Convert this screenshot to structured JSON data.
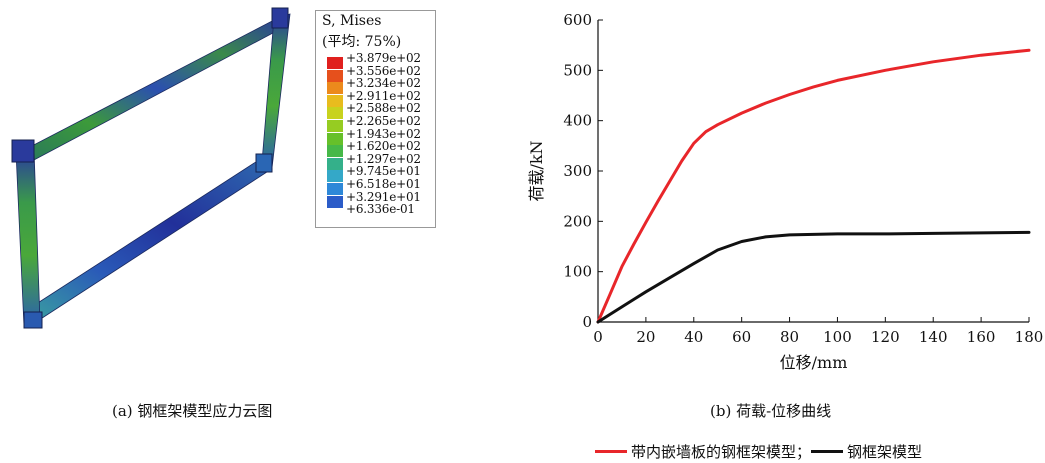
{
  "stress_legend": {
    "title_line1": "S, Mises",
    "title_line2": "(平均: 75%)",
    "entries": [
      {
        "label": "+3.879e+02",
        "color": "#e0201e"
      },
      {
        "label": "+3.556e+02",
        "color": "#e6501c"
      },
      {
        "label": "+3.234e+02",
        "color": "#ec8a1c"
      },
      {
        "label": "+2.911e+02",
        "color": "#e8bc1e"
      },
      {
        "label": "+2.588e+02",
        "color": "#c8d21e"
      },
      {
        "label": "+2.265e+02",
        "color": "#96cc22"
      },
      {
        "label": "+1.943e+02",
        "color": "#66c02a"
      },
      {
        "label": "+1.620e+02",
        "color": "#46b848"
      },
      {
        "label": "+1.297e+02",
        "color": "#34b08a"
      },
      {
        "label": "+9.745e+01",
        "color": "#34a8c8"
      },
      {
        "label": "+6.518e+01",
        "color": "#2e88d8"
      },
      {
        "label": "+3.291e+01",
        "color": "#2b5cc8"
      },
      {
        "label": "+6.336e-01",
        "color": "#1f2fa8"
      }
    ]
  },
  "captions": {
    "a": "(a) 钢框架模型应力云图",
    "b": "(b) 荷载-位移曲线"
  },
  "bottom_legend": {
    "item1": "带内嵌墙板的钢框架模型；",
    "item2": "钢框架模型"
  },
  "chart_data": {
    "type": "line",
    "xlabel": "位移/mm",
    "ylabel": "荷载/kN",
    "xlim": [
      0,
      180
    ],
    "ylim": [
      0,
      600
    ],
    "xticks": [
      0,
      20,
      40,
      60,
      80,
      100,
      120,
      140,
      160,
      180
    ],
    "yticks": [
      0,
      100,
      200,
      300,
      400,
      500,
      600
    ],
    "grid": false,
    "legend_position": "bottom",
    "series": [
      {
        "name": "带内嵌墙板的钢框架模型",
        "color": "#e8262a",
        "x": [
          0,
          5,
          10,
          15,
          20,
          25,
          30,
          35,
          40,
          45,
          50,
          60,
          70,
          80,
          90,
          100,
          120,
          140,
          160,
          180
        ],
        "y": [
          0,
          55,
          110,
          155,
          198,
          240,
          280,
          320,
          355,
          378,
          392,
          415,
          435,
          452,
          467,
          480,
          500,
          517,
          530,
          540
        ]
      },
      {
        "name": "钢框架模型",
        "color": "#111111",
        "x": [
          0,
          5,
          10,
          20,
          30,
          40,
          50,
          60,
          70,
          80,
          90,
          100,
          120,
          140,
          160,
          180
        ],
        "y": [
          0,
          15,
          30,
          60,
          88,
          116,
          143,
          160,
          169,
          173,
          174,
          175,
          175,
          176,
          177,
          178
        ]
      }
    ]
  }
}
